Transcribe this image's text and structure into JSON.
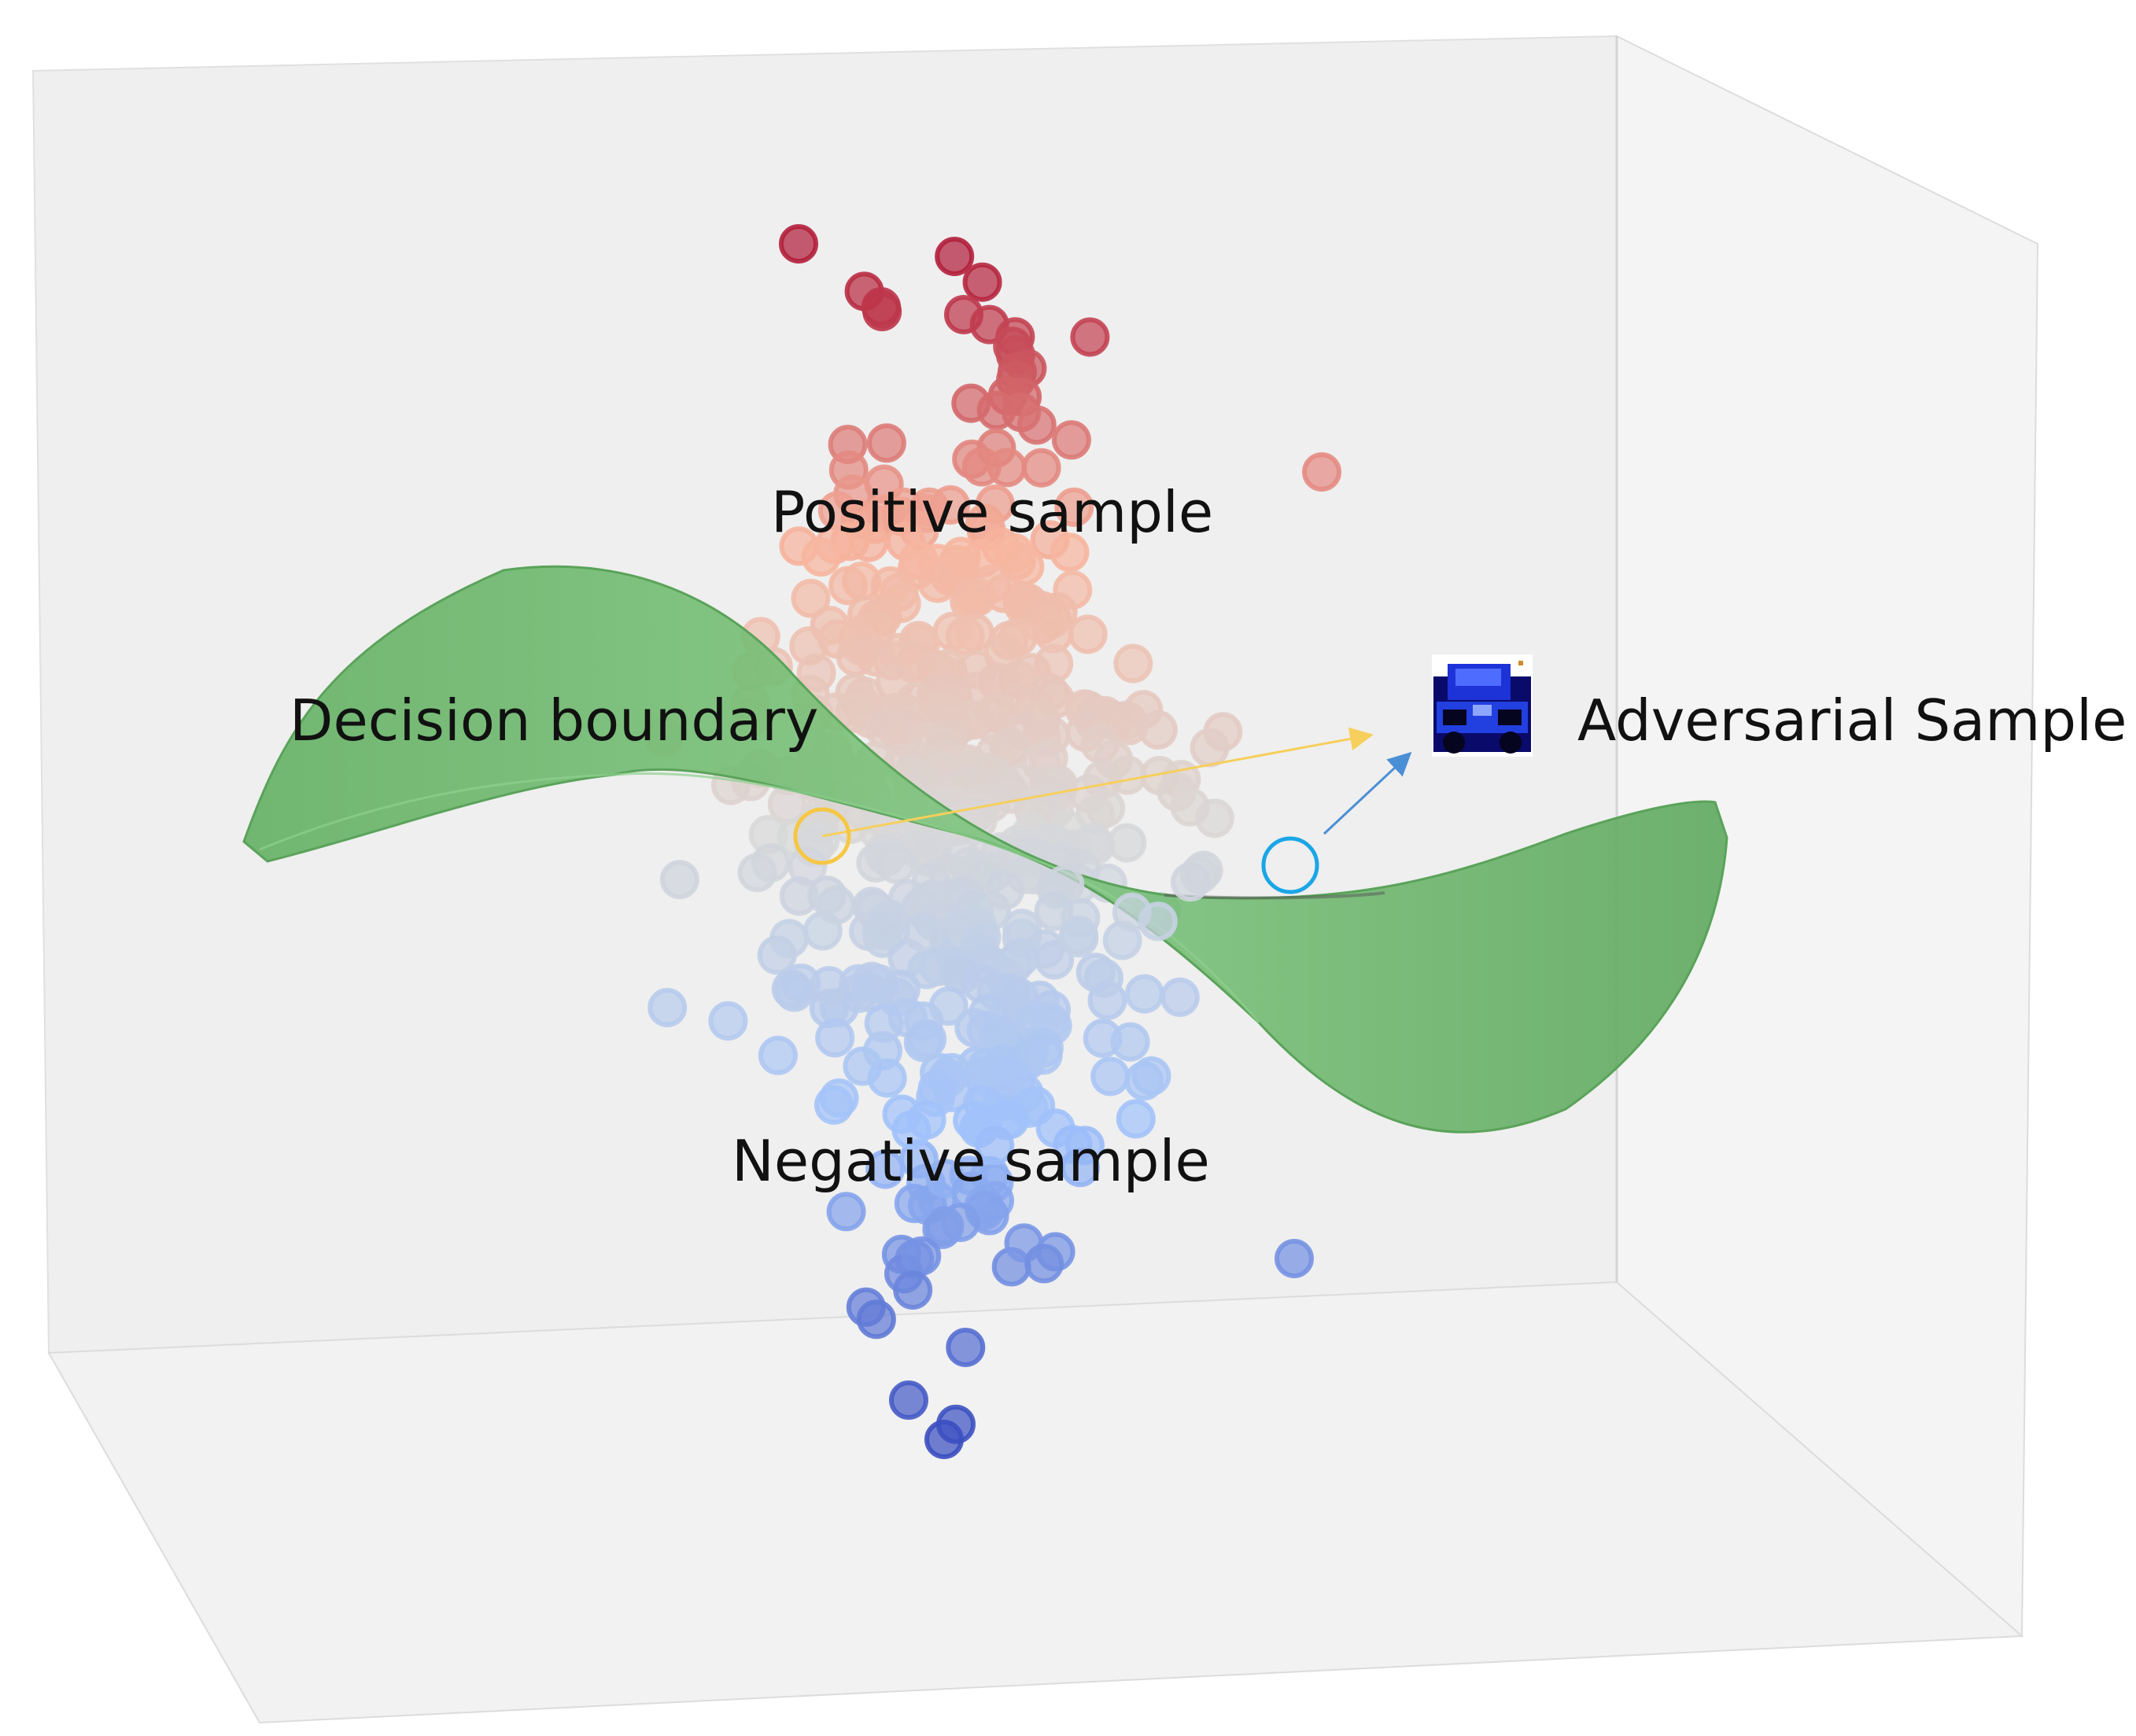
{
  "labels": {
    "positive": "Positive sample",
    "negative": "Negative sample",
    "decision": "Decision boundary",
    "adversarial": "Adversarial Sample"
  },
  "colors": {
    "background": "#ffffff",
    "box_fill": "#efefef",
    "box_edge": "#d9d9d9",
    "boundary": "#6cb86c",
    "positive_dark": "#b21f3b",
    "positive_light": "#f7b59e",
    "neutral": "#d8d8d8",
    "negative_light": "#9fc1fb",
    "negative_dark": "#3b4fc0",
    "original_marker": "#f6c744",
    "adversarial_marker": "#1aa6e6",
    "arrow_yellow": "#f6cf5c",
    "arrow_blue": "#4a8fd6"
  },
  "icons": {
    "adversarial_thumbnail": "vehicle-image-icon"
  }
}
